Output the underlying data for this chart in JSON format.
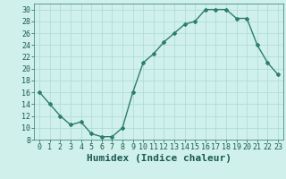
{
  "x": [
    0,
    1,
    2,
    3,
    4,
    5,
    6,
    7,
    8,
    9,
    10,
    11,
    12,
    13,
    14,
    15,
    16,
    17,
    18,
    19,
    20,
    21,
    22,
    23
  ],
  "y": [
    16,
    14,
    12,
    10.5,
    11,
    9,
    8.5,
    8.5,
    10,
    16,
    21,
    22.5,
    24.5,
    26,
    27.5,
    28,
    30,
    30,
    30,
    28.5,
    28.5,
    24,
    21,
    19
  ],
  "line_color": "#2e7d6e",
  "marker": "D",
  "marker_size": 2,
  "background_color": "#cff0eb",
  "grid_color": "#b0ddd8",
  "xlabel": "Humidex (Indice chaleur)",
  "ylim": [
    8,
    31
  ],
  "xlim": [
    -0.5,
    23.5
  ],
  "yticks": [
    8,
    10,
    12,
    14,
    16,
    18,
    20,
    22,
    24,
    26,
    28,
    30
  ],
  "xticks": [
    0,
    1,
    2,
    3,
    4,
    5,
    6,
    7,
    8,
    9,
    10,
    11,
    12,
    13,
    14,
    15,
    16,
    17,
    18,
    19,
    20,
    21,
    22,
    23
  ],
  "tick_labelsize": 6,
  "xlabel_fontsize": 8,
  "linewidth": 1.0
}
